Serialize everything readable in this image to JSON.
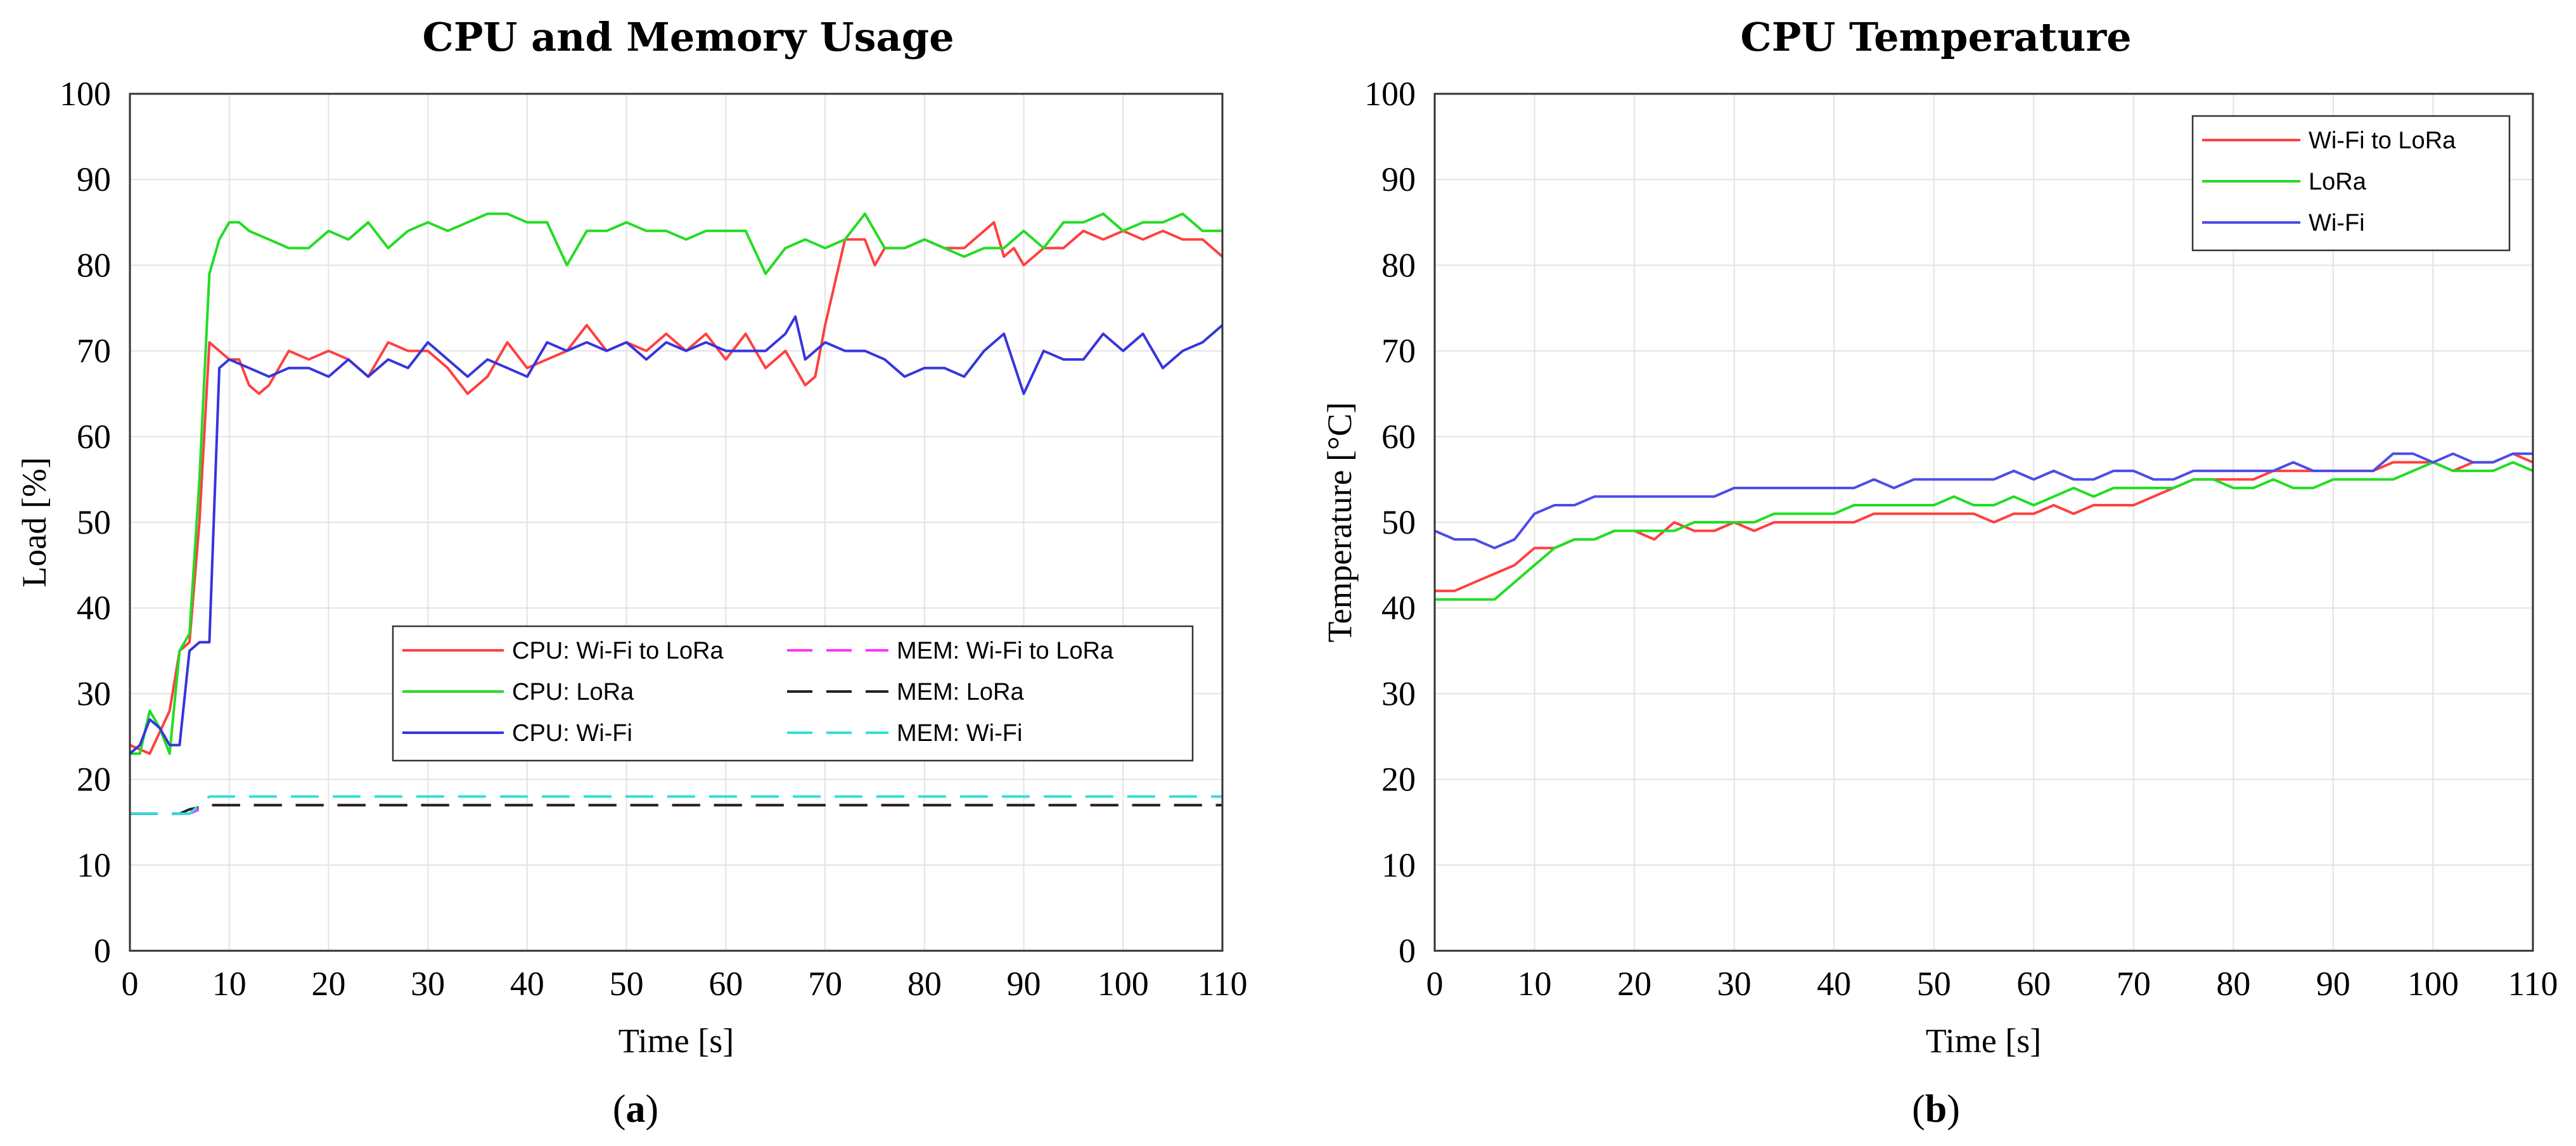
{
  "figure": {
    "panel_a_label": {
      "open": "(",
      "letter": "a",
      "close": ")"
    },
    "panel_b_label": {
      "open": "(",
      "letter": "b",
      "close": ")"
    }
  },
  "chart_data": [
    {
      "type": "line",
      "title": "CPU and Memory Usage",
      "xlabel": "Time [s]",
      "ylabel": "Load [%]",
      "xlim": [
        0,
        110
      ],
      "ylim": [
        0,
        100
      ],
      "xticks": [
        0,
        10,
        20,
        30,
        40,
        50,
        60,
        70,
        80,
        90,
        100,
        110
      ],
      "yticks": [
        0,
        10,
        20,
        30,
        40,
        50,
        60,
        70,
        80,
        90,
        100
      ],
      "grid": true,
      "legend_position": "lower-right",
      "series": [
        {
          "name": "CPU: Wi-Fi to LoRa",
          "color": "#ff4040",
          "dash": "solid",
          "x": [
            0,
            2,
            4,
            5,
            6,
            7,
            8,
            9,
            10,
            11,
            12,
            13,
            14,
            16,
            18,
            20,
            22,
            24,
            26,
            28,
            30,
            32,
            34,
            36,
            38,
            40,
            42,
            44,
            46,
            48,
            50,
            52,
            54,
            56,
            58,
            60,
            62,
            64,
            66,
            68,
            69,
            70,
            72,
            74,
            75,
            76,
            78,
            80,
            82,
            84,
            86,
            87,
            88,
            89,
            90,
            92,
            94,
            96,
            98,
            100,
            102,
            104,
            106,
            108,
            110
          ],
          "y": [
            24,
            23,
            28,
            35,
            36,
            50,
            71,
            70,
            69,
            69,
            66,
            65,
            66,
            70,
            69,
            70,
            69,
            67,
            71,
            70,
            70,
            68,
            65,
            67,
            71,
            68,
            69,
            70,
            73,
            70,
            71,
            70,
            72,
            70,
            72,
            69,
            72,
            68,
            70,
            66,
            67,
            73,
            83,
            83,
            80,
            82,
            82,
            83,
            82,
            82,
            84,
            85,
            81,
            82,
            80,
            82,
            82,
            84,
            83,
            84,
            83,
            84,
            83,
            83,
            81
          ]
        },
        {
          "name": "CPU: LoRa",
          "color": "#22dd22",
          "dash": "solid",
          "x": [
            0,
            1,
            2,
            3,
            4,
            5,
            6,
            7,
            8,
            9,
            10,
            11,
            12,
            14,
            16,
            18,
            20,
            22,
            24,
            26,
            28,
            30,
            32,
            34,
            36,
            38,
            40,
            42,
            44,
            46,
            48,
            50,
            52,
            54,
            56,
            58,
            60,
            62,
            64,
            66,
            68,
            70,
            72,
            74,
            76,
            78,
            80,
            82,
            84,
            86,
            88,
            90,
            92,
            94,
            96,
            98,
            100,
            102,
            104,
            106,
            108,
            110
          ],
          "y": [
            23,
            23,
            28,
            26,
            23,
            35,
            37,
            55,
            79,
            83,
            85,
            85,
            84,
            83,
            82,
            82,
            84,
            83,
            85,
            82,
            84,
            85,
            84,
            85,
            86,
            86,
            85,
            85,
            80,
            84,
            84,
            85,
            84,
            84,
            83,
            84,
            84,
            84,
            79,
            82,
            83,
            82,
            83,
            86,
            82,
            82,
            83,
            82,
            81,
            82,
            82,
            84,
            82,
            85,
            85,
            86,
            84,
            85,
            85,
            86,
            84,
            84
          ]
        },
        {
          "name": "CPU: Wi-Fi",
          "color": "#3535dd",
          "dash": "solid",
          "x": [
            0,
            1,
            2,
            3,
            4,
            5,
            6,
            7,
            8,
            9,
            10,
            12,
            14,
            16,
            18,
            20,
            22,
            24,
            26,
            28,
            30,
            32,
            34,
            36,
            38,
            40,
            42,
            44,
            46,
            48,
            50,
            52,
            54,
            56,
            58,
            60,
            62,
            64,
            66,
            67,
            68,
            70,
            72,
            74,
            76,
            78,
            80,
            82,
            84,
            86,
            88,
            90,
            92,
            94,
            96,
            98,
            100,
            102,
            104,
            106,
            108,
            110
          ],
          "y": [
            23,
            24,
            27,
            26,
            24,
            24,
            35,
            36,
            36,
            68,
            69,
            68,
            67,
            68,
            68,
            67,
            69,
            67,
            69,
            68,
            71,
            69,
            67,
            69,
            68,
            67,
            71,
            70,
            71,
            70,
            71,
            69,
            71,
            70,
            71,
            70,
            70,
            70,
            72,
            74,
            69,
            71,
            70,
            70,
            69,
            67,
            68,
            68,
            67,
            70,
            72,
            65,
            70,
            69,
            69,
            72,
            70,
            72,
            68,
            70,
            71,
            73
          ]
        },
        {
          "name": "MEM: Wi-Fi to LoRa",
          "color": "#ff33ff",
          "dash": "dashed",
          "x": [
            0,
            6,
            8,
            80,
            110
          ],
          "y": [
            16,
            16,
            17,
            17,
            17
          ]
        },
        {
          "name": "MEM: LoRa",
          "color": "#222222",
          "dash": "dashed",
          "x": [
            0,
            5,
            6,
            8,
            110
          ],
          "y": [
            16,
            16,
            16.5,
            17,
            17
          ]
        },
        {
          "name": "MEM: Wi-Fi",
          "color": "#33dddd",
          "dash": "dashed",
          "x": [
            0,
            6,
            8,
            110
          ],
          "y": [
            16,
            16,
            18,
            18
          ]
        }
      ]
    },
    {
      "type": "line",
      "title": "CPU Temperature",
      "xlabel": "Time [s]",
      "ylabel": "Temperature [°C]",
      "xlim": [
        0,
        110
      ],
      "ylim": [
        0,
        100
      ],
      "xticks": [
        0,
        10,
        20,
        30,
        40,
        50,
        60,
        70,
        80,
        90,
        100,
        110
      ],
      "yticks": [
        0,
        10,
        20,
        30,
        40,
        50,
        60,
        70,
        80,
        90,
        100
      ],
      "grid": true,
      "legend_position": "top-right",
      "series": [
        {
          "name": "Wi-Fi to LoRa",
          "color": "#ff4040",
          "dash": "solid",
          "x": [
            0,
            2,
            4,
            6,
            8,
            10,
            12,
            14,
            16,
            18,
            20,
            22,
            24,
            26,
            28,
            30,
            32,
            34,
            36,
            38,
            40,
            42,
            44,
            46,
            48,
            50,
            52,
            54,
            56,
            58,
            60,
            62,
            64,
            66,
            68,
            70,
            72,
            74,
            76,
            78,
            80,
            82,
            84,
            86,
            88,
            90,
            92,
            94,
            96,
            98,
            100,
            102,
            104,
            106,
            108,
            110
          ],
          "y": [
            42,
            42,
            43,
            44,
            45,
            47,
            47,
            48,
            48,
            49,
            49,
            48,
            50,
            49,
            49,
            50,
            49,
            50,
            50,
            50,
            50,
            50,
            51,
            51,
            51,
            51,
            51,
            51,
            50,
            51,
            51,
            52,
            51,
            52,
            52,
            52,
            53,
            54,
            55,
            55,
            55,
            55,
            56,
            56,
            56,
            56,
            56,
            56,
            57,
            57,
            57,
            56,
            57,
            57,
            58,
            57
          ]
        },
        {
          "name": "LoRa",
          "color": "#22dd22",
          "dash": "solid",
          "x": [
            0,
            2,
            4,
            6,
            8,
            10,
            12,
            14,
            16,
            18,
            20,
            22,
            24,
            26,
            28,
            30,
            32,
            34,
            36,
            38,
            40,
            42,
            44,
            46,
            48,
            50,
            52,
            54,
            56,
            58,
            60,
            62,
            64,
            66,
            68,
            70,
            72,
            74,
            76,
            78,
            80,
            82,
            84,
            86,
            88,
            90,
            92,
            94,
            96,
            98,
            100,
            102,
            104,
            106,
            108,
            110
          ],
          "y": [
            41,
            41,
            41,
            41,
            43,
            45,
            47,
            48,
            48,
            49,
            49,
            49,
            49,
            50,
            50,
            50,
            50,
            51,
            51,
            51,
            51,
            52,
            52,
            52,
            52,
            52,
            53,
            52,
            52,
            53,
            52,
            53,
            54,
            53,
            54,
            54,
            54,
            54,
            55,
            55,
            54,
            54,
            55,
            54,
            54,
            55,
            55,
            55,
            55,
            56,
            57,
            56,
            56,
            56,
            57,
            56
          ]
        },
        {
          "name": "Wi-Fi",
          "color": "#4d4de6",
          "dash": "solid",
          "x": [
            0,
            2,
            4,
            6,
            8,
            10,
            12,
            14,
            16,
            18,
            20,
            22,
            24,
            26,
            28,
            30,
            32,
            34,
            36,
            38,
            40,
            42,
            44,
            46,
            48,
            50,
            52,
            54,
            56,
            58,
            60,
            62,
            64,
            66,
            68,
            70,
            72,
            74,
            76,
            78,
            80,
            82,
            84,
            86,
            88,
            90,
            92,
            94,
            96,
            98,
            100,
            102,
            104,
            106,
            108,
            110
          ],
          "y": [
            49,
            48,
            48,
            47,
            48,
            51,
            52,
            52,
            53,
            53,
            53,
            53,
            53,
            53,
            53,
            54,
            54,
            54,
            54,
            54,
            54,
            54,
            55,
            54,
            55,
            55,
            55,
            55,
            55,
            56,
            55,
            56,
            55,
            55,
            56,
            56,
            55,
            55,
            56,
            56,
            56,
            56,
            56,
            57,
            56,
            56,
            56,
            56,
            58,
            58,
            57,
            58,
            57,
            57,
            58,
            58
          ]
        }
      ]
    }
  ]
}
